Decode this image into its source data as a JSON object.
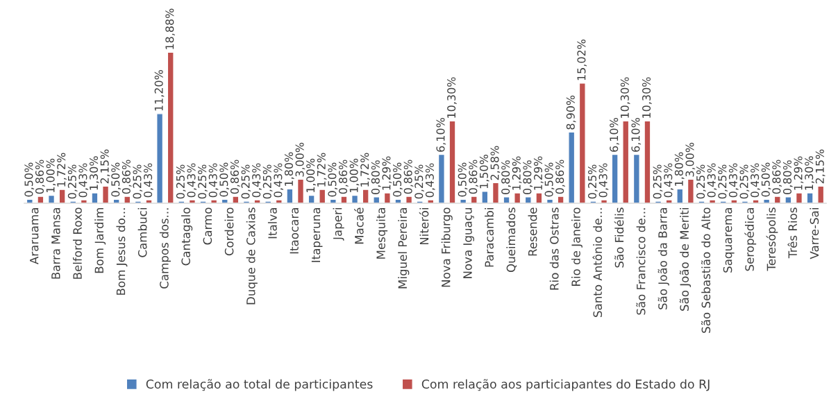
{
  "chart_data": {
    "type": "bar",
    "categories": [
      "Araruama",
      "Barra Mansa",
      "Belford Roxo",
      "Bom Jardim",
      "Bom Jesus do...",
      "Cambuci",
      "Campos dos...",
      "Cantagalo",
      "Carmo",
      "Cordeiro",
      "Duque de Caxias",
      "Italva",
      "Itaocara",
      "Itaperuna",
      "Japeri",
      "Macaé",
      "Mesquita",
      "Miguel Pereira",
      "Niterói",
      "Nova Friburgo",
      "Nova Iguaçu",
      "Paracambi",
      "Queimados",
      "Resende",
      "Rio das Ostras",
      "Rio de Janeiro",
      "Santo Antônio de...",
      "São Fidélis",
      "São Francisco de...",
      "São João da Barra",
      "São João de Meriti",
      "São Sebastião do Alto",
      "Saquarema",
      "Seropédica",
      "Teresópolis",
      "Três Rios",
      "Varre-Sai"
    ],
    "series": [
      {
        "name": "Com relação ao total de participantes",
        "color": "#4f81bd",
        "values": [
          0.5,
          1.0,
          0.25,
          1.3,
          0.5,
          0.25,
          11.2,
          0.25,
          0.25,
          0.5,
          0.25,
          0.25,
          1.8,
          1.0,
          0.5,
          1.0,
          0.8,
          0.5,
          0.25,
          6.1,
          0.5,
          1.5,
          0.8,
          0.8,
          0.5,
          8.9,
          0.25,
          6.1,
          6.1,
          0.25,
          1.8,
          0.25,
          0.25,
          0.25,
          0.5,
          0.8,
          1.3
        ],
        "value_labels": [
          "0,50%",
          "1,00%",
          "0,25%",
          "1,30%",
          "0,50%",
          "0,25%",
          "11,20%",
          "0,25%",
          "0,25%",
          "0,50%",
          "0,25%",
          "0,25%",
          "1,80%",
          "1,00%",
          "0,50%",
          "1,00%",
          "0,80%",
          "0,50%",
          "0,25%",
          "6,10%",
          "0,50%",
          "1,50%",
          "0,80%",
          "0,80%",
          "0,50%",
          "8,90%",
          "0,25%",
          "6,10%",
          "6,10%",
          "0,25%",
          "1,80%",
          "0,25%",
          "0,25%",
          "0,25%",
          "0,50%",
          "0,80%",
          "1,30%"
        ]
      },
      {
        "name": "Com relação aos particiapantes do Estado do RJ",
        "color": "#c0504d",
        "values": [
          0.86,
          1.72,
          0.43,
          2.15,
          0.86,
          0.43,
          18.88,
          0.43,
          0.43,
          0.86,
          0.43,
          0.43,
          3.0,
          1.72,
          0.86,
          1.72,
          1.29,
          0.86,
          0.43,
          10.3,
          0.86,
          2.58,
          1.29,
          1.29,
          0.86,
          15.02,
          0.43,
          10.3,
          10.3,
          0.43,
          3.0,
          0.43,
          0.43,
          0.43,
          0.86,
          1.29,
          2.15
        ],
        "value_labels": [
          "0,86%",
          "1,72%",
          "0,43%",
          "2,15%",
          "0,86%",
          "0,43%",
          "18,88%",
          "0,43%",
          "0,43%",
          "0,86%",
          "0,43%",
          "0,43%",
          "3,00%",
          "1,72%",
          "0,86%",
          "1,72%",
          "1,29%",
          "0,86%",
          "0,43%",
          "10,30%",
          "0,86%",
          "2,58%",
          "1,29%",
          "1,29%",
          "0,86%",
          "15,02%",
          "0,43%",
          "10,30%",
          "10,30%",
          "0,43%",
          "3,00%",
          "0,43%",
          "0,43%",
          "0,43%",
          "0,86%",
          "1,29%",
          "2,15%"
        ]
      }
    ],
    "legend": "bottom",
    "grid": false
  }
}
